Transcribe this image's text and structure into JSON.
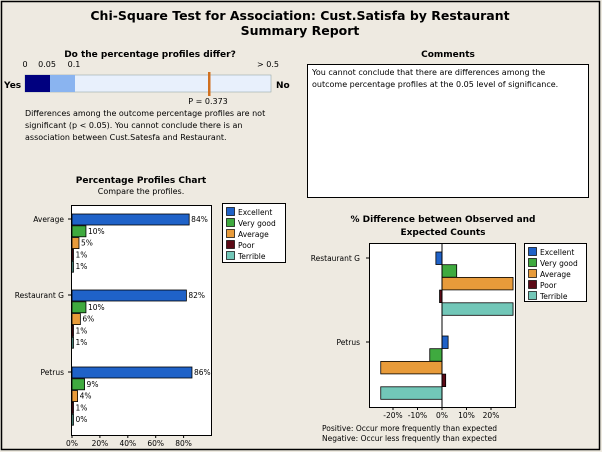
{
  "report": {
    "title_line1": "Chi-Square Test for Association: Cust.Satisfa by Restaurant",
    "title_line2": "Summary Report"
  },
  "pvalue_panel": {
    "heading": "Do the percentage profiles differ?",
    "scale_labels": [
      "0",
      "0.05",
      "0.1",
      "> 0.5"
    ],
    "yes_label": "Yes",
    "no_label": "No",
    "p_label": "P = 0.373",
    "p_value": 0.373,
    "description": [
      "Differences among the outcome percentage profiles are not",
      "significant (p < 0.05). You cannot conclude there is an",
      "association between Cust.Satesfa and Restaurant."
    ],
    "colors": {
      "sig_strong": "#00007F",
      "sig_weak": "#8AB4F0",
      "not_sig": "#E8F0FC",
      "marker": "#D07020"
    }
  },
  "comments": {
    "heading": "Comments",
    "lines": [
      "You cannot conclude that there are differences among the",
      "outcome percentage profiles at the 0.05 level of significance."
    ]
  },
  "legend": [
    {
      "label": "Excellent",
      "color": "#1F62C8"
    },
    {
      "label": "Very good",
      "color": "#3FAA3F"
    },
    {
      "label": "Average",
      "color": "#E89B3A"
    },
    {
      "label": "Poor",
      "color": "#5C0A16"
    },
    {
      "label": "Terrible",
      "color": "#72C7B8"
    }
  ],
  "chart_data": [
    {
      "type": "bar",
      "orientation": "horizontal",
      "title": "Percentage Profiles Chart",
      "subtitle": "Compare the profiles.",
      "categories": [
        "Average",
        "Restaurant G",
        "Petrus"
      ],
      "series": [
        {
          "name": "Excellent",
          "values": [
            84,
            82,
            86
          ]
        },
        {
          "name": "Very good",
          "values": [
            10,
            10,
            9
          ]
        },
        {
          "name": "Average",
          "values": [
            5,
            6,
            4
          ]
        },
        {
          "name": "Poor",
          "values": [
            1,
            1,
            1
          ]
        },
        {
          "name": "Terrible",
          "values": [
            1,
            1,
            0
          ]
        }
      ],
      "data_labels": [
        [
          "84%",
          "10%",
          "5%",
          "1%",
          "1%"
        ],
        [
          "82%",
          "10%",
          "6%",
          "1%",
          "1%"
        ],
        [
          "86%",
          "9%",
          "4%",
          "1%",
          "0%"
        ]
      ],
      "xticks": [
        "0%",
        "20%",
        "40%",
        "60%",
        "80%"
      ],
      "xlim": [
        0,
        100
      ],
      "legend_position": "right"
    },
    {
      "type": "bar",
      "orientation": "horizontal",
      "title_line1": "% Difference between Observed and",
      "title_line2": "Expected Counts",
      "categories": [
        "Restaurant G",
        "Petrus"
      ],
      "series": [
        {
          "name": "Excellent",
          "values": [
            -2.5,
            2.5
          ]
        },
        {
          "name": "Very good",
          "values": [
            6,
            -5
          ]
        },
        {
          "name": "Average",
          "values": [
            29,
            -25
          ]
        },
        {
          "name": "Poor",
          "values": [
            -1,
            1.5
          ]
        },
        {
          "name": "Terrible",
          "values": [
            29,
            -25
          ]
        }
      ],
      "xticks": [
        "-20%",
        "-10%",
        "0%",
        "10%",
        "20%"
      ],
      "xlim": [
        -30,
        30
      ],
      "legend_position": "right",
      "footnotes": [
        "Positive:  Occur more frequently than expected",
        "Negative:  Occur less frequently than expected"
      ]
    }
  ]
}
